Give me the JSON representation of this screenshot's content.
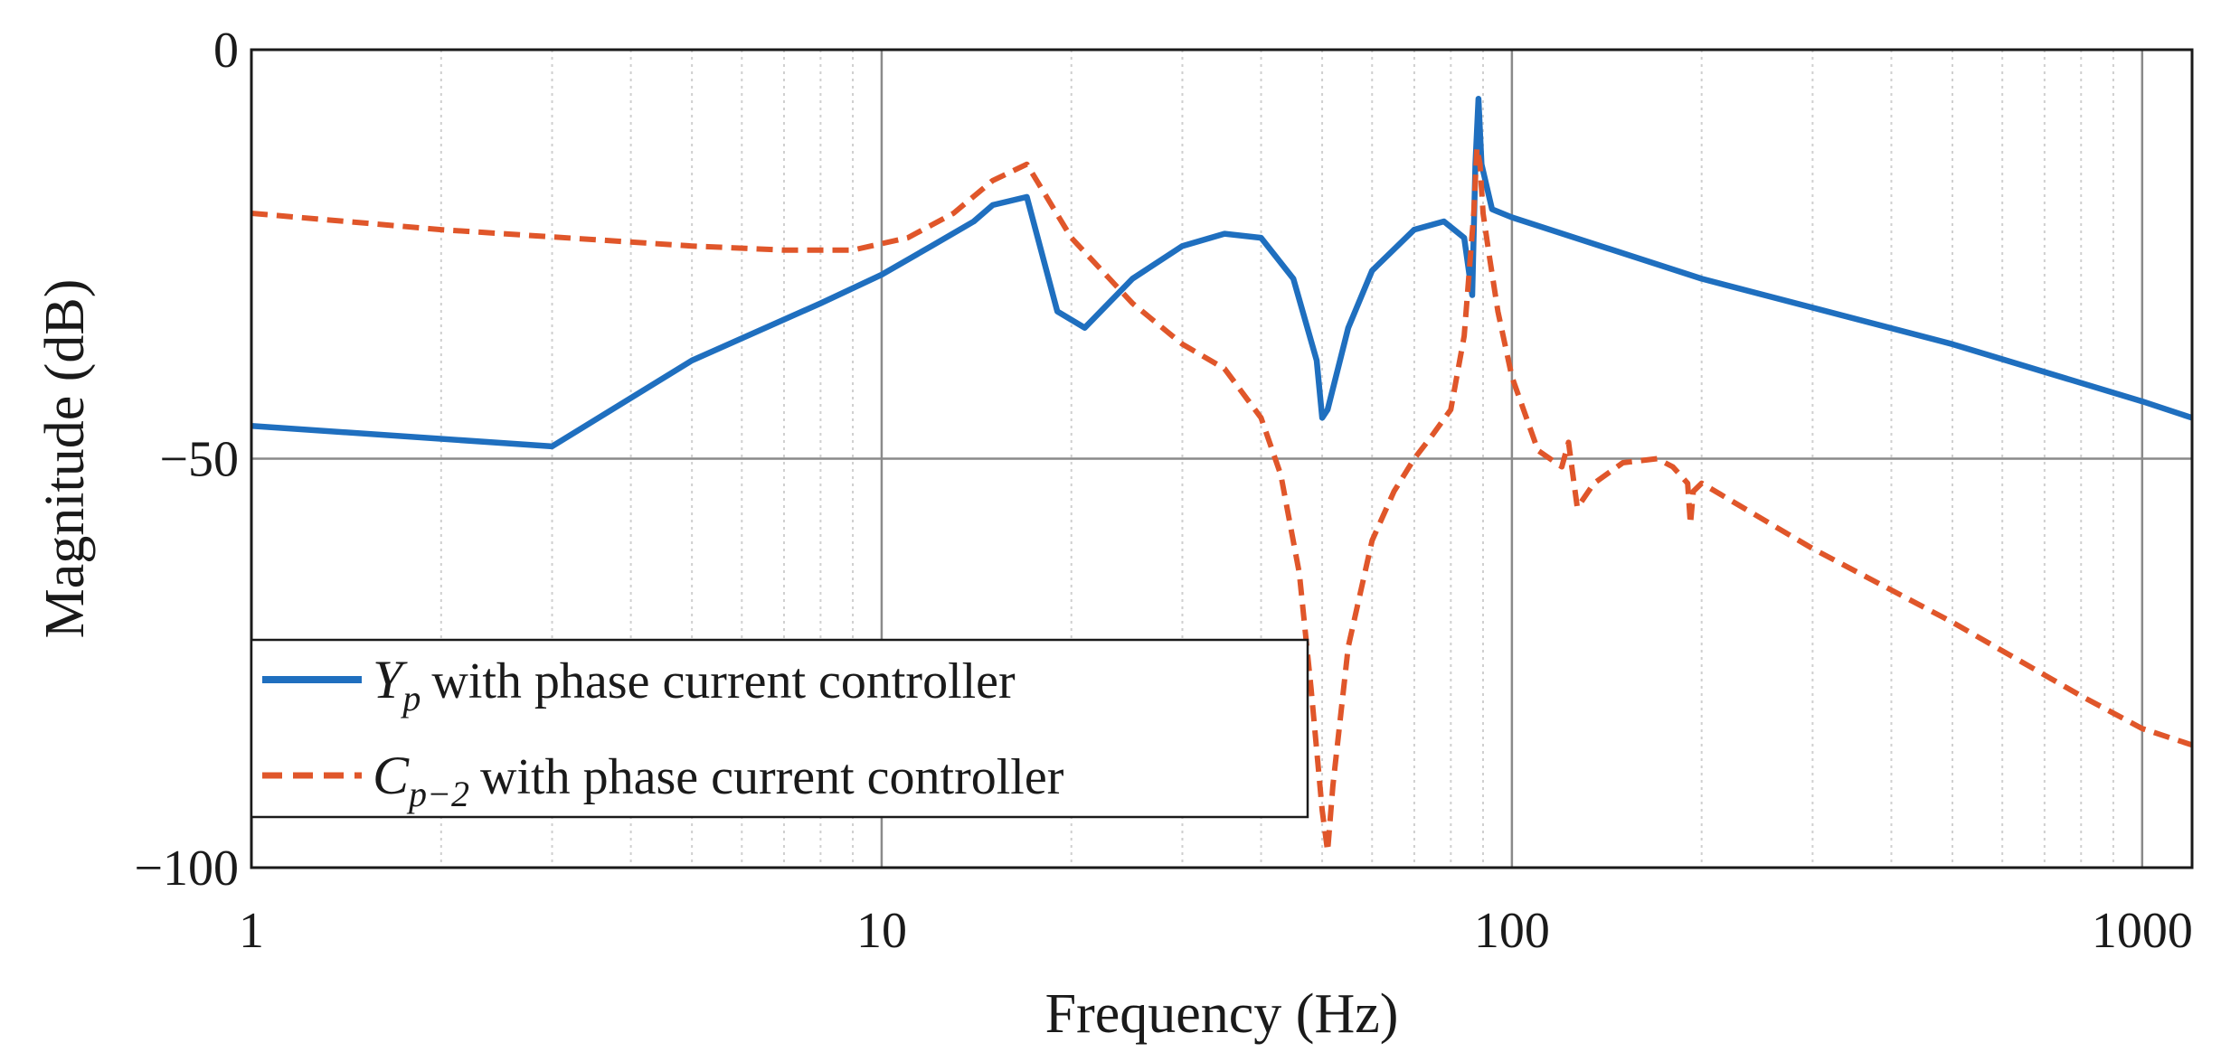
{
  "chart_data": {
    "type": "line",
    "title": "",
    "xlabel": "Frequency (Hz)",
    "ylabel": "Magnitude (dB)",
    "xscale": "log",
    "xlim": [
      1,
      1200
    ],
    "ylim": [
      -100,
      0
    ],
    "xticks": [
      1,
      10,
      100,
      1000
    ],
    "xtick_labels": [
      "1",
      "10",
      "100",
      "1000"
    ],
    "yticks": [
      0,
      -50,
      -100
    ],
    "ytick_labels": [
      "0",
      "−50",
      "−100"
    ],
    "grid": true,
    "legend_position": "lower-left",
    "series": [
      {
        "name": "Y_p with phase current controller",
        "legend_symbol": "Y",
        "legend_subscript": "p",
        "legend_text": "with phase current controller",
        "color": "#1f6fbf",
        "style": "solid",
        "x": [
          1,
          3,
          5,
          8,
          10,
          12,
          14,
          15,
          17,
          19,
          21,
          25,
          30,
          35,
          40,
          45,
          49,
          50,
          51,
          55,
          60,
          70,
          78,
          84,
          86.5,
          87.5,
          88.5,
          89.5,
          93,
          100,
          200,
          500,
          1000,
          1200
        ],
        "y": [
          -46,
          -48.5,
          -38,
          -31,
          -27.5,
          -24,
          -21,
          -19,
          -18,
          -32,
          -34,
          -28,
          -24,
          -22.5,
          -23,
          -28,
          -38,
          -45,
          -44,
          -34,
          -27,
          -22,
          -21,
          -23,
          -30,
          -14,
          -6,
          -14,
          -19.5,
          -20.5,
          -28,
          -36,
          -43,
          -45
        ]
      },
      {
        "name": "C_{p-2} with phase current controller",
        "legend_symbol": "C",
        "legend_subscript": "p−2",
        "legend_text": "with phase current controller",
        "color": "#e0562a",
        "style": "dashed",
        "x": [
          1,
          2,
          5,
          7,
          9,
          11,
          13,
          15,
          17,
          20,
          25,
          30,
          35,
          40,
          43,
          46,
          48,
          50,
          51,
          52,
          55,
          60,
          65,
          70,
          75,
          80,
          84,
          87,
          88,
          89,
          90,
          92,
          95,
          100,
          110,
          120,
          123,
          127,
          135,
          150,
          170,
          180,
          190,
          192,
          194,
          200,
          300,
          500,
          800,
          1000,
          1200
        ],
        "y": [
          -20,
          -22,
          -24,
          -24.5,
          -24.5,
          -23,
          -20,
          -16,
          -14,
          -23,
          -31,
          -36,
          -39,
          -45,
          -52,
          -64,
          -78,
          -93,
          -98,
          -90,
          -73,
          -60,
          -54,
          -50,
          -47,
          -44,
          -35,
          -20,
          -12,
          -14,
          -20,
          -25,
          -32,
          -40,
          -49,
          -51,
          -48,
          -56,
          -53,
          -50.5,
          -50,
          -51,
          -53,
          -58,
          -54,
          -53,
          -61,
          -70,
          -79,
          -83,
          -85
        ]
      }
    ]
  }
}
